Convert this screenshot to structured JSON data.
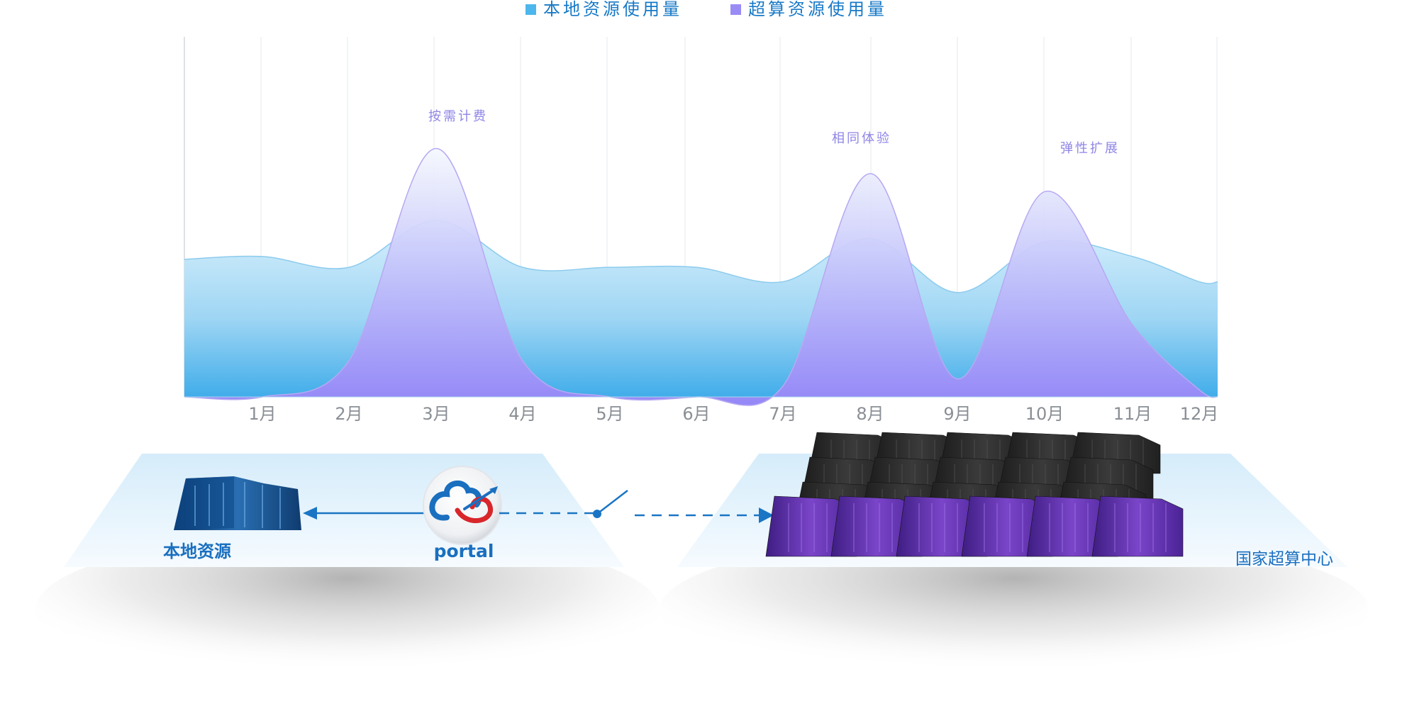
{
  "chart_data": {
    "type": "area",
    "title": "",
    "xlabel": "",
    "ylabel": "",
    "grid": true,
    "legend_placement": "top-center",
    "categories": [
      "1月",
      "2月",
      "3月",
      "4月",
      "5月",
      "6月",
      "7月",
      "8月",
      "9月",
      "10月",
      "11月",
      "12月"
    ],
    "series": [
      {
        "name": "本地资源使用量",
        "color": "#4db6ec",
        "values": [
          39,
          36,
          49,
          36,
          36,
          36,
          32,
          44,
          29,
          43,
          39,
          32
        ]
      },
      {
        "name": "超算资源使用量",
        "color": "#9a8cf5",
        "values": [
          0,
          10,
          69,
          10,
          0,
          0,
          3,
          62,
          5,
          57,
          20,
          2
        ]
      }
    ],
    "annotations": [
      {
        "text": "按需计费",
        "category": "3月"
      },
      {
        "text": "相同体验",
        "category": "8月"
      },
      {
        "text": "弹性扩展",
        "category": "11月"
      }
    ]
  },
  "legend": {
    "local_label": "本地资源使用量",
    "hpc_label": "超算资源使用量"
  },
  "diagram": {
    "local_label": "本地资源",
    "portal_label": "portal",
    "hpc_label": "国家超算中心",
    "local_color": "#1a6fbf",
    "hpc_color": "#6a3fb5",
    "portal_red": "#d8262b"
  }
}
